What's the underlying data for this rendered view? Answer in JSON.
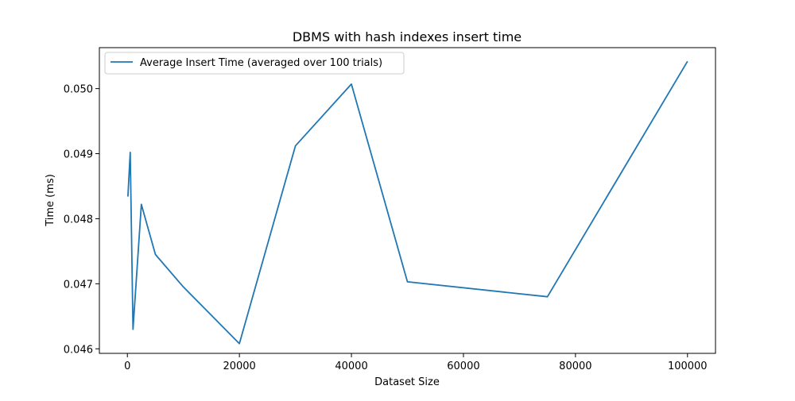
{
  "chart_data": {
    "type": "line",
    "title": "DBMS with hash indexes insert time",
    "xlabel": "Dataset Size",
    "ylabel": "Time (ms)",
    "xlim": [
      -5000,
      105000
    ],
    "ylim": [
      0.04593,
      0.05063
    ],
    "xticks": [
      0,
      20000,
      40000,
      60000,
      80000,
      100000
    ],
    "xtick_labels": [
      "0",
      "20000",
      "40000",
      "60000",
      "80000",
      "100000"
    ],
    "yticks": [
      0.046,
      0.047,
      0.048,
      0.049,
      0.05
    ],
    "ytick_labels": [
      "0.046",
      "0.047",
      "0.048",
      "0.049",
      "0.050"
    ],
    "grid": false,
    "legend_position": "upper left",
    "series": [
      {
        "name": "Average Insert Time (averaged over 100 trials)",
        "color": "#1f77b4",
        "x": [
          100,
          500,
          1000,
          2500,
          5000,
          10000,
          20000,
          30000,
          40000,
          50000,
          75000,
          100000
        ],
        "y": [
          0.04834,
          0.04902,
          0.0463,
          0.04822,
          0.04745,
          0.04695,
          0.04608,
          0.04912,
          0.05007,
          0.04703,
          0.0468,
          0.05042
        ]
      }
    ]
  }
}
